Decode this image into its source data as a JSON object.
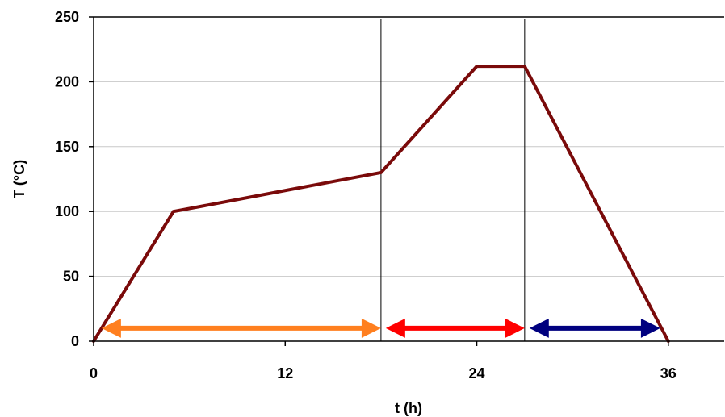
{
  "chart_data": {
    "type": "line",
    "title": "",
    "xlabel": "t (h)",
    "ylabel": "T (°C)",
    "xlim": [
      0,
      39.5
    ],
    "ylim": [
      0,
      250
    ],
    "x_ticks": [
      0,
      12,
      24,
      36
    ],
    "y_ticks": [
      0,
      50,
      100,
      150,
      200,
      250
    ],
    "grid": {
      "horizontal": true,
      "vertical": false
    },
    "series": [
      {
        "color": "#7a0a0a",
        "points": [
          [
            0,
            0
          ],
          [
            5,
            100
          ],
          [
            18,
            130
          ],
          [
            24,
            212
          ],
          [
            27,
            212
          ],
          [
            36,
            0
          ]
        ]
      }
    ],
    "vertical_lines": [
      18,
      27
    ],
    "arrows": [
      {
        "from": 0.5,
        "to": 18,
        "y": 10,
        "color": "#ff7f1f",
        "name": "arrow-orange"
      },
      {
        "from": 18.3,
        "to": 27,
        "y": 10,
        "color": "#ff0000",
        "name": "arrow-red"
      },
      {
        "from": 27.3,
        "to": 35.5,
        "y": 10,
        "color": "#00007f",
        "name": "arrow-navy"
      }
    ],
    "colors": {
      "grid": "#c8c8c8",
      "axis": "#000000"
    }
  }
}
